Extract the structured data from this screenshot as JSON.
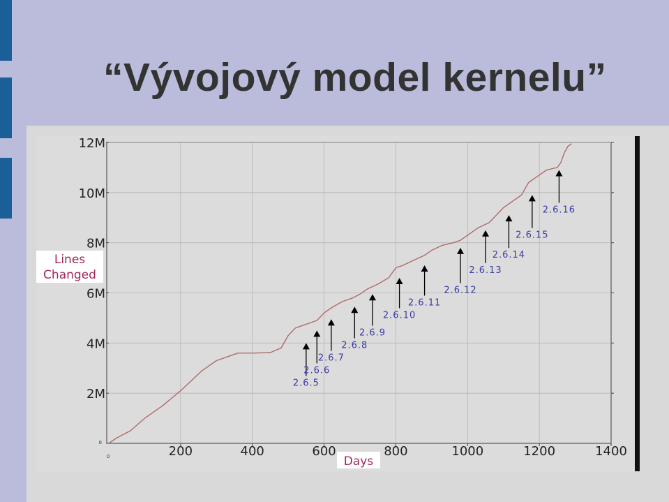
{
  "slide": {
    "title": "“Vývojový model kernelu”",
    "background_color": "#bbbcdb",
    "accent_color": "#1a5f97"
  },
  "chart_data": {
    "type": "line",
    "xlabel": "Days",
    "ylabel": [
      "Lines",
      "Changed"
    ],
    "xlim": [
      0,
      1400
    ],
    "ylim": [
      0,
      12000000
    ],
    "x_ticks": [
      200,
      400,
      600,
      800,
      1000,
      1200,
      1400
    ],
    "x_tick_labels": [
      "200",
      "400",
      "600",
      "800",
      "1000",
      "1200",
      "1400"
    ],
    "x_origin_label": "0",
    "y_ticks": [
      2000000,
      4000000,
      6000000,
      8000000,
      10000000,
      12000000
    ],
    "y_tick_labels": [
      "2M",
      "4M",
      "6M",
      "8M",
      "10M",
      "12M"
    ],
    "y_origin_label": "0",
    "grid": true,
    "series": [
      {
        "color": "#b06a6a",
        "x": [
          0,
          20,
          60,
          100,
          150,
          200,
          230,
          260,
          300,
          340,
          360,
          400,
          450,
          480,
          500,
          520,
          550,
          580,
          600,
          620,
          650,
          680,
          700,
          720,
          750,
          780,
          800,
          820,
          850,
          880,
          900,
          930,
          960,
          980,
          1000,
          1030,
          1060,
          1080,
          1100,
          1120,
          1150,
          1170,
          1200,
          1220,
          1250,
          1260,
          1270,
          1280,
          1290
        ],
        "y": [
          0,
          200000,
          500000,
          1000000,
          1500000,
          2100000,
          2500000,
          2900000,
          3300000,
          3500000,
          3600000,
          3600000,
          3620000,
          3800000,
          4300000,
          4600000,
          4750000,
          4900000,
          5200000,
          5400000,
          5650000,
          5800000,
          5950000,
          6150000,
          6350000,
          6600000,
          7000000,
          7100000,
          7300000,
          7500000,
          7700000,
          7900000,
          8000000,
          8100000,
          8300000,
          8600000,
          8800000,
          9100000,
          9400000,
          9600000,
          9900000,
          10400000,
          10700000,
          10900000,
          11000000,
          11200000,
          11600000,
          11850000,
          11950000
        ]
      }
    ],
    "annotations": [
      {
        "label": "2.6.5",
        "x": 550,
        "arrow_top": 4000000,
        "text_y": 2300000
      },
      {
        "label": "2.6.6",
        "x": 580,
        "arrow_top": 4500000,
        "text_y": 2800000
      },
      {
        "label": "2.6.7",
        "x": 620,
        "arrow_top": 4950000,
        "text_y": 3300000
      },
      {
        "label": "2.6.8",
        "x": 685,
        "arrow_top": 5450000,
        "text_y": 3800000
      },
      {
        "label": "2.6.9",
        "x": 735,
        "arrow_top": 5950000,
        "text_y": 4300000
      },
      {
        "label": "2.6.10",
        "x": 810,
        "arrow_top": 6600000,
        "text_y": 5000000
      },
      {
        "label": "2.6.11",
        "x": 880,
        "arrow_top": 7100000,
        "text_y": 5500000
      },
      {
        "label": "2.6.12",
        "x": 980,
        "arrow_top": 7800000,
        "text_y": 6000000
      },
      {
        "label": "2.6.13",
        "x": 1050,
        "arrow_top": 8500000,
        "text_y": 6800000
      },
      {
        "label": "2.6.14",
        "x": 1115,
        "arrow_top": 9100000,
        "text_y": 7400000
      },
      {
        "label": "2.6.15",
        "x": 1180,
        "arrow_top": 9900000,
        "text_y": 8200000
      },
      {
        "label": "2.6.16",
        "x": 1255,
        "arrow_top": 10900000,
        "text_y": 9200000
      }
    ]
  }
}
